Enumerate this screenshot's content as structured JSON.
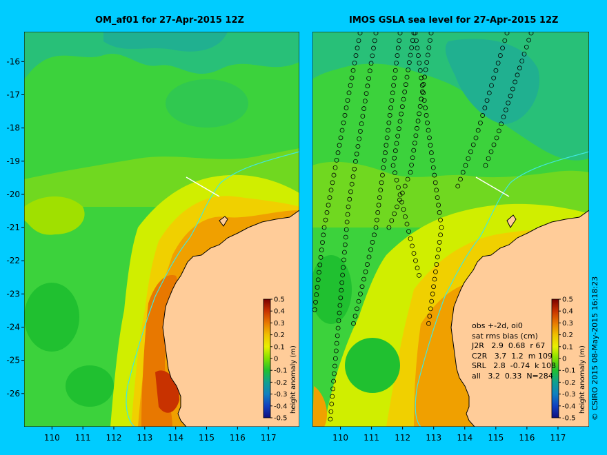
{
  "credit": "© CSIRO 2015  08-May-2015 16:18:23",
  "colorscale": {
    "ticks": [
      "0.5",
      "0.4",
      "0.3",
      "0.2",
      "0.1",
      "0",
      "-0.1",
      "-0.2",
      "-0.3",
      "-0.4",
      "-0.5"
    ],
    "label": "height anomaly (m)",
    "stops": [
      "#7a0000",
      "#c83200",
      "#e87800",
      "#f0c000",
      "#e8f000",
      "#80e000",
      "#20c030",
      "#10a090",
      "#1080c0",
      "#1040c0",
      "#101080"
    ]
  },
  "chart_data": [
    {
      "type": "heatmap",
      "title": "OM_af01 for 27-Apr-2015 12Z",
      "x_ticks": [
        110,
        111,
        112,
        113,
        114,
        115,
        116,
        117
      ],
      "y_ticks": [
        -16,
        -17,
        -18,
        -19,
        -20,
        -21,
        -22,
        -23,
        -24,
        -25,
        -26
      ],
      "xlim": [
        109.1,
        118.0
      ],
      "ylim": [
        -27.0,
        -15.1
      ]
    },
    {
      "type": "heatmap",
      "title": "IMOS GSLA sea level  for 27-Apr-2015 12Z",
      "x_ticks": [
        110,
        111,
        112,
        113,
        114,
        115,
        116,
        117
      ],
      "xlim": [
        109.1,
        118.0
      ],
      "ylim": [
        -27.0,
        -15.1
      ],
      "annotation": [
        "obs +-2d, oi0",
        "sat rms bias (cm)",
        "J2R   2.9  0.68  r 67",
        "C2R   3.7  1.2  m 109",
        "SRL   2.8  -0.74  k 108",
        "all   3.2  0.33  N=284"
      ]
    }
  ]
}
